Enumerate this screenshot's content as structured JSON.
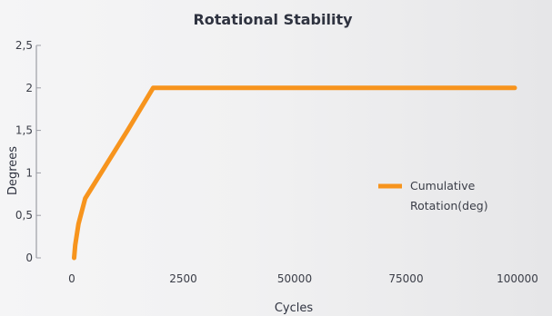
{
  "chart_data": {
    "type": "line",
    "title": "Rotational Stability",
    "xlabel": "Cycles",
    "ylabel": "Degrees",
    "x_categories": [
      "0",
      "2500",
      "50000",
      "75000",
      "100000"
    ],
    "y_ticks": [
      "0",
      "0,5",
      "1",
      "1,5",
      "2",
      "2,5"
    ],
    "ylim": [
      0,
      2.5
    ],
    "grid": false,
    "legend_position": "right",
    "series": [
      {
        "name_lines": [
          "Cumulative",
          "Rotation(deg)"
        ],
        "color": "#f7941d",
        "points": [
          {
            "x": 0.02,
            "y": 0
          },
          {
            "x": 0.03,
            "y": 0.15
          },
          {
            "x": 0.06,
            "y": 0.4
          },
          {
            "x": 0.12,
            "y": 0.7
          },
          {
            "x": 0.5,
            "y": 1.5
          },
          {
            "x": 0.73,
            "y": 2
          },
          {
            "x": 4,
            "y": 2
          }
        ]
      }
    ]
  }
}
